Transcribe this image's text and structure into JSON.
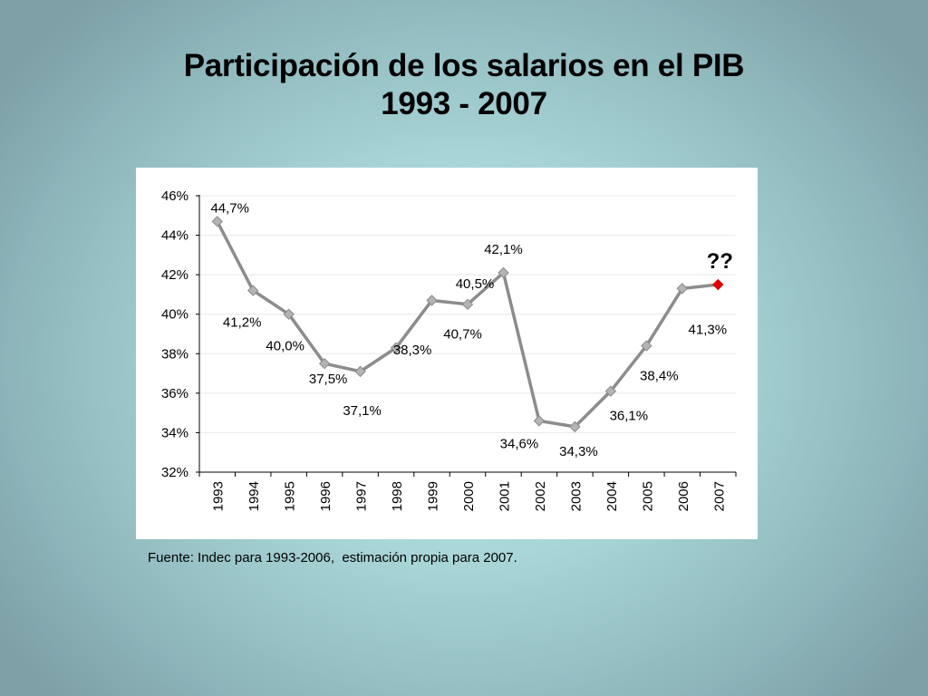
{
  "slide": {
    "title_line1": "Participación de los salarios en el PIB",
    "title_line2": "1993 - 2007",
    "source": "Fuente: Indec para 1993-2006,  estimación propia para 2007."
  },
  "colors": {
    "line": "#8c8c8c",
    "marker": "#b4b4b4",
    "marker_edge": "#8a8a8a",
    "highlight": "#e00000",
    "grid": "#e8e8e8"
  },
  "chart_data": {
    "type": "line",
    "title": "Participación de los salarios en el PIB 1993 - 2007",
    "xlabel": "",
    "ylabel": "",
    "categories": [
      "1993",
      "1994",
      "1995",
      "1996",
      "1997",
      "1998",
      "1999",
      "2000",
      "2001",
      "2002",
      "2003",
      "2004",
      "2005",
      "2006",
      "2007"
    ],
    "series": [
      {
        "values": [
          44.7,
          41.2,
          40.0,
          37.5,
          37.1,
          38.3,
          40.7,
          40.5,
          42.1,
          34.6,
          34.3,
          36.1,
          38.4,
          41.3,
          41.5
        ]
      }
    ],
    "data_labels": [
      "44,7%",
      "41,2%",
      "40,0%",
      "37,5%",
      "37,1%",
      "38,3%",
      "40,7%",
      "40,5%",
      "42,1%",
      "34,6%",
      "34,3%",
      "36,1%",
      "38,4%",
      "41,3%",
      "??"
    ],
    "highlighted_point": "2007",
    "y_ticks": [
      "32%",
      "34%",
      "36%",
      "38%",
      "40%",
      "42%",
      "44%",
      "46%"
    ],
    "ylim": [
      32,
      46
    ],
    "grid": true,
    "legend": "none"
  }
}
